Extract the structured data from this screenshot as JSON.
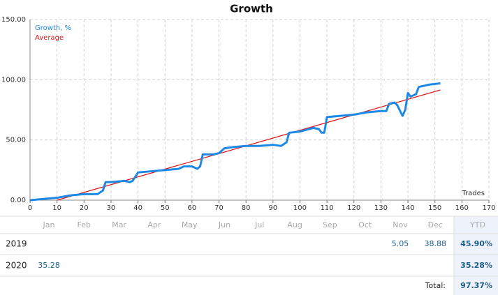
{
  "chart_data": {
    "type": "line",
    "title": "Growth",
    "x_label": "Trades",
    "xlim": [
      0,
      170
    ],
    "xticks": [
      0,
      10,
      20,
      30,
      40,
      50,
      60,
      70,
      80,
      90,
      100,
      110,
      120,
      130,
      140,
      150,
      160,
      170
    ],
    "ylim": [
      0,
      150
    ],
    "yticks": [
      {
        "value": 0,
        "label": "0.00"
      },
      {
        "value": 50,
        "label": "50.00"
      },
      {
        "value": 100,
        "label": "100.00"
      },
      {
        "value": 150,
        "label": "150.00"
      }
    ],
    "grid": true,
    "legend": "upper left",
    "series": [
      {
        "name": "Growth, %",
        "color": "#1e88e5",
        "x": [
          0,
          5,
          10,
          15,
          20,
          25,
          27,
          28,
          30,
          35,
          37,
          38,
          40,
          45,
          50,
          55,
          57,
          60,
          62,
          63,
          64,
          68,
          70,
          72,
          75,
          80,
          85,
          90,
          93,
          95,
          96,
          100,
          105,
          107,
          108,
          109,
          110,
          115,
          120,
          125,
          130,
          132,
          133,
          135,
          136,
          138,
          139,
          140,
          141,
          143,
          144,
          148,
          152
        ],
        "values": [
          0,
          1,
          2,
          4,
          5,
          5,
          8,
          15,
          15,
          16,
          15,
          16,
          23,
          24,
          25,
          26,
          28,
          28,
          26,
          28,
          38,
          38,
          39,
          43,
          44,
          45,
          45,
          46,
          45,
          48,
          56,
          57,
          60,
          59,
          56,
          56,
          69,
          70,
          71,
          73,
          74,
          74,
          80,
          81,
          79,
          70,
          75,
          89,
          86,
          88,
          94,
          96,
          97
        ]
      },
      {
        "name": "Average",
        "color": "#d81b1b",
        "x": [
          10,
          152
        ],
        "values": [
          0,
          91.5
        ]
      }
    ]
  },
  "table": {
    "columns": [
      "Jan",
      "Feb",
      "Mar",
      "Apr",
      "May",
      "Jun",
      "Jul",
      "Aug",
      "Sep",
      "Oct",
      "Nov",
      "Dec",
      "YTD"
    ],
    "rows": [
      {
        "label": "2019",
        "months": {
          "Nov": "5.05",
          "Dec": "38.88"
        },
        "ytd": "45.90%"
      },
      {
        "label": "2020",
        "months": {
          "Jan": "35.28"
        },
        "ytd": "35.28%"
      }
    ],
    "total_label": "Total:",
    "total": "97.37%"
  }
}
